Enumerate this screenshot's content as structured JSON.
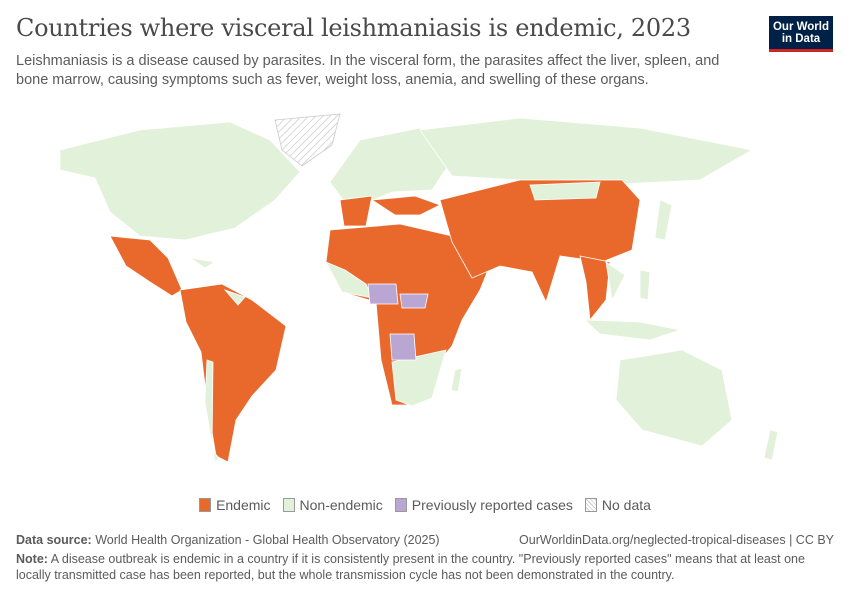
{
  "header": {
    "title": "Countries where visceral leishmaniasis is endemic, 2023",
    "subtitle": "Leishmaniasis is a disease caused by parasites. In the visceral form, the parasites affect the liver, spleen, and bone marrow, causing symptoms such as fever, weight loss, anemia, and swelling of these organs.",
    "logo": "Our World in Data"
  },
  "legend": [
    {
      "label": "Endemic",
      "color": "#e9692c"
    },
    {
      "label": "Non-endemic",
      "color": "#e2f1d9"
    },
    {
      "label": "Previously reported cases",
      "color": "#b9a6d3"
    },
    {
      "label": "No data",
      "color": "hatched"
    }
  ],
  "footer": {
    "source_label": "Data source:",
    "source": "World Health Organization - Global Health Observatory (2025)",
    "url": "OurWorldinData.org/neglected-tropical-diseases | CC BY",
    "note_label": "Note:",
    "note": "A disease outbreak is endemic in a country if it is consistently present in the country. \"Previously reported cases\" means that at least one locally transmitted case has been reported, but the whole transmission cycle has not been demonstrated in the country."
  }
}
